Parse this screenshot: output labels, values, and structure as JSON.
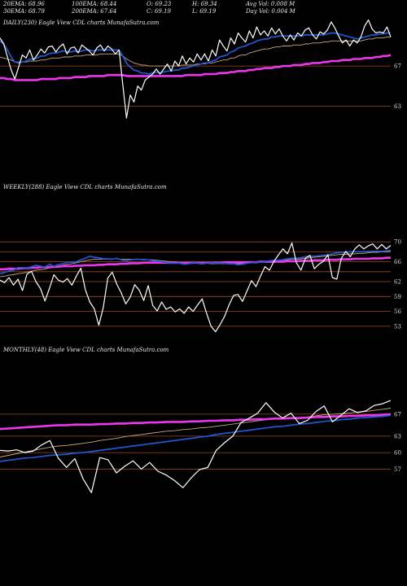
{
  "header": {
    "row1": [
      "20EMA: 68.96",
      "100EMA: 68.44",
      "O: 69.23",
      "H: 69.34",
      "Avg Vol: 0.008  M"
    ],
    "row2": [
      "30EMA: 68.79",
      "200EMA: 67.64",
      "C: 69.19",
      "L: 69.19",
      "Day Vol: 0.004  M"
    ]
  },
  "colors": {
    "background": "#000000",
    "price": "#ffffff",
    "ema_short": "#1e5ad8",
    "ema_long": "#ee36ee",
    "ema_other": "#c9a77a",
    "level_line": "#9c4a1e"
  },
  "chart_data": [
    {
      "type": "line",
      "title": "DAILY(230) Eagle  View  CDL  charts MunafaSutra.com",
      "ylim": [
        61,
        71.8
      ],
      "levels": [
        67,
        63
      ],
      "tick_labels": [
        "67",
        "63"
      ],
      "series": [
        {
          "role": "price",
          "values": [
            69.8,
            69.2,
            67.9,
            66.6,
            65.7,
            66.9,
            68.1,
            67.8,
            68.6,
            67.6,
            68.1,
            68.7,
            68.3,
            68.9,
            69.0,
            68.4,
            68.9,
            69.2,
            68.2,
            68.8,
            68.9,
            68.3,
            69.1,
            68.8,
            68.5,
            68.1,
            68.8,
            69.1,
            68.5,
            69.0,
            68.7,
            68.2,
            68.6,
            65.1,
            61.8,
            64.1,
            63.4,
            65.0,
            64.6,
            65.6,
            65.9,
            66.2,
            66.7,
            66.2,
            66.7,
            67.2,
            66.5,
            67.5,
            67.0,
            68.0,
            67.2,
            67.8,
            67.4,
            68.2,
            67.6,
            68.2,
            67.5,
            68.6,
            68.0,
            69.6,
            69.0,
            68.5,
            69.8,
            69.2,
            70.3,
            69.8,
            69.4,
            70.5,
            69.8,
            70.9,
            70.1,
            70.5,
            70.0,
            70.8,
            70.2,
            70.7,
            70.0,
            69.5,
            70.1,
            69.6,
            70.3,
            70.0,
            70.6,
            70.8,
            70.1,
            69.7,
            70.4,
            70.2,
            70.6,
            71.4,
            70.8,
            70.0,
            69.3,
            69.6,
            69.0,
            69.6,
            69.3,
            69.9,
            71.0,
            71.6,
            70.7,
            70.3,
            70.4,
            70.3,
            70.9,
            69.9
          ]
        },
        {
          "role": "ema_short",
          "values": [
            69.5,
            69.2,
            68.6,
            67.9,
            67.4,
            67.3,
            67.4,
            67.5,
            67.7,
            67.7,
            67.8,
            68.0,
            68.0,
            68.2,
            68.3,
            68.3,
            68.4,
            68.5,
            68.4,
            68.4,
            68.5,
            68.4,
            68.5,
            68.6,
            68.6,
            68.5,
            68.6,
            68.6,
            68.6,
            68.6,
            68.6,
            68.6,
            68.6,
            68.0,
            67.3,
            66.9,
            66.6,
            66.5,
            66.3,
            66.3,
            66.2,
            66.3,
            66.4,
            66.3,
            66.4,
            66.5,
            66.5,
            66.6,
            66.6,
            66.8,
            66.8,
            66.9,
            67.0,
            67.1,
            67.2,
            67.3,
            67.3,
            67.5,
            67.6,
            67.9,
            68.0,
            68.1,
            68.4,
            68.5,
            68.8,
            68.9,
            69.0,
            69.2,
            69.3,
            69.5,
            69.6,
            69.7,
            69.7,
            69.9,
            69.9,
            70.0,
            70.0,
            70.0,
            70.0,
            70.0,
            70.0,
            70.0,
            70.1,
            70.1,
            70.1,
            70.1,
            70.1,
            70.1,
            70.2,
            70.3,
            70.3,
            70.2,
            70.1,
            70.0,
            69.9,
            69.8,
            69.7,
            69.8,
            69.9,
            70.0,
            70.1,
            70.1,
            70.2,
            70.2,
            70.3,
            70.3
          ]
        },
        {
          "role": "ema_long",
          "values": [
            65.8,
            65.8,
            65.7,
            65.7,
            65.6,
            65.6,
            65.6,
            65.6,
            65.6,
            65.6,
            65.6,
            65.7,
            65.7,
            65.7,
            65.7,
            65.7,
            65.8,
            65.8,
            65.8,
            65.8,
            65.9,
            65.9,
            65.9,
            65.9,
            66.0,
            66.0,
            66.0,
            66.0,
            66.0,
            66.1,
            66.1,
            66.1,
            66.1,
            66.1,
            66.0,
            66.0,
            66.0,
            66.0,
            66.0,
            66.0,
            66.0,
            66.0,
            66.0,
            66.0,
            66.0,
            66.0,
            66.0,
            66.0,
            66.0,
            66.0,
            66.1,
            66.1,
            66.1,
            66.1,
            66.1,
            66.2,
            66.2,
            66.2,
            66.2,
            66.3,
            66.3,
            66.3,
            66.4,
            66.4,
            66.5,
            66.5,
            66.5,
            66.6,
            66.6,
            66.7,
            66.7,
            66.8,
            66.8,
            66.8,
            66.9,
            66.9,
            67.0,
            67.0,
            67.0,
            67.1,
            67.1,
            67.1,
            67.2,
            67.2,
            67.3,
            67.3,
            67.3,
            67.4,
            67.4,
            67.5,
            67.5,
            67.5,
            67.6,
            67.6,
            67.6,
            67.7,
            67.7,
            67.7,
            67.8,
            67.8,
            67.8,
            67.9,
            67.9,
            68.0,
            68.0,
            68.1
          ]
        },
        {
          "role": "ema_other",
          "values": [
            67.9,
            67.8,
            67.7,
            67.6,
            67.4,
            67.4,
            67.4,
            67.4,
            67.5,
            67.5,
            67.5,
            67.6,
            67.6,
            67.7,
            67.8,
            67.8,
            67.8,
            67.9,
            67.9,
            67.9,
            68.0,
            68.0,
            68.0,
            68.1,
            68.1,
            68.1,
            68.1,
            68.2,
            68.2,
            68.2,
            68.2,
            68.2,
            68.2,
            68.0,
            67.7,
            67.5,
            67.3,
            67.2,
            67.1,
            67.1,
            67.0,
            67.0,
            67.0,
            67.0,
            67.0,
            67.0,
            67.0,
            67.0,
            67.0,
            67.1,
            67.1,
            67.1,
            67.1,
            67.2,
            67.2,
            67.2,
            67.3,
            67.3,
            67.4,
            67.5,
            67.6,
            67.6,
            67.8,
            67.8,
            68.0,
            68.1,
            68.1,
            68.3,
            68.4,
            68.5,
            68.6,
            68.7,
            68.7,
            68.8,
            68.9,
            68.9,
            69.0,
            69.0,
            69.0,
            69.1,
            69.1,
            69.1,
            69.2,
            69.2,
            69.3,
            69.3,
            69.3,
            69.4,
            69.4,
            69.5,
            69.5,
            69.5,
            69.5,
            69.5,
            69.5,
            69.5,
            69.5,
            69.5,
            69.6,
            69.7,
            69.7,
            69.8,
            69.8,
            69.8,
            69.9,
            69.9
          ]
        }
      ]
    },
    {
      "type": "line",
      "title": "WEEKLY(288) Eagle  View  CDL  charts MunafaSutra.com",
      "ylim": [
        51.5,
        72.5
      ],
      "levels": [
        70,
        68,
        66,
        64,
        62,
        59,
        56,
        53
      ],
      "tick_labels": [
        "70",
        "66",
        "62",
        "59",
        "56",
        "53"
      ],
      "series": [
        {
          "role": "price",
          "values": [
            62.3,
            61.8,
            62.8,
            61.3,
            62.5,
            60.2,
            63.5,
            64.1,
            62.0,
            60.6,
            58.1,
            60.6,
            63.4,
            62.3,
            61.9,
            62.6,
            61.3,
            63.1,
            64.7,
            60.4,
            57.9,
            56.5,
            53.2,
            56.8,
            62.7,
            63.9,
            61.5,
            59.7,
            57.5,
            58.9,
            61.4,
            60.3,
            58.2,
            61.2,
            57.2,
            56.1,
            57.9,
            56.4,
            56.9,
            55.9,
            56.5,
            55.6,
            56.9,
            56.0,
            57.3,
            58.5,
            55.6,
            53.0,
            51.9,
            53.3,
            55.0,
            57.3,
            59.2,
            59.4,
            58.0,
            60.1,
            62.2,
            61.0,
            63.1,
            65.0,
            64.3,
            66.1,
            67.4,
            68.6,
            67.6,
            69.8,
            65.8,
            64.3,
            66.7,
            67.3,
            64.6,
            65.5,
            66.1,
            67.4,
            62.8,
            62.5,
            66.7,
            68.1,
            67.0,
            68.6,
            69.4,
            68.6,
            69.2,
            69.6,
            68.6,
            69.5,
            68.6,
            69.3
          ]
        },
        {
          "role": "ema_short",
          "values": [
            63.6,
            63.8,
            64.2,
            64.3,
            64.8,
            64.8,
            64.7,
            65.0,
            65.3,
            65.1,
            64.9,
            65.5,
            65.1,
            65.4,
            65.6,
            65.9,
            65.9,
            66.0,
            66.4,
            66.7,
            67.1,
            66.9,
            66.8,
            66.6,
            66.6,
            66.5,
            66.7,
            66.4,
            66.2,
            66.4,
            66.5,
            66.5,
            66.4,
            66.4,
            66.2,
            66.1,
            66.0,
            65.9,
            65.7,
            65.7,
            65.7,
            65.5,
            65.6,
            65.8,
            65.7,
            65.6,
            65.7,
            65.8,
            65.7,
            65.7,
            65.7,
            65.6,
            65.6,
            65.4,
            65.5,
            65.7,
            65.8,
            66.0,
            65.9,
            66.0,
            66.2,
            66.3,
            66.3,
            66.4,
            66.6,
            66.7,
            66.7,
            66.8,
            67.0,
            67.1,
            67.1,
            67.2,
            67.3,
            67.4,
            67.6,
            67.8,
            67.9,
            67.9,
            68.0,
            68.0,
            68.0,
            68.0,
            68.1,
            68.1,
            68.1,
            68.1,
            68.2,
            68.3
          ]
        },
        {
          "role": "ema_long",
          "values": [
            64.5,
            64.5,
            64.6,
            64.6,
            64.6,
            64.7,
            64.7,
            64.8,
            64.8,
            64.9,
            64.9,
            64.9,
            65.0,
            65.0,
            65.1,
            65.1,
            65.1,
            65.2,
            65.2,
            65.3,
            65.3,
            65.3,
            65.4,
            65.4,
            65.5,
            65.5,
            65.5,
            65.6,
            65.6,
            65.7,
            65.7,
            65.7,
            65.8,
            65.8,
            65.8,
            65.8,
            65.8,
            65.8,
            65.8,
            65.8,
            65.8,
            65.8,
            65.8,
            65.8,
            65.8,
            65.8,
            65.8,
            65.8,
            65.8,
            65.8,
            65.9,
            65.9,
            65.9,
            65.9,
            65.9,
            65.9,
            65.9,
            65.9,
            66.0,
            66.0,
            66.0,
            66.0,
            66.0,
            66.0,
            66.1,
            66.1,
            66.1,
            66.2,
            66.2,
            66.2,
            66.3,
            66.3,
            66.3,
            66.4,
            66.4,
            66.4,
            66.5,
            66.5,
            66.5,
            66.6,
            66.6,
            66.6,
            66.6,
            66.7,
            66.7,
            66.7,
            66.8,
            66.8
          ]
        },
        {
          "role": "ema_other",
          "values": [
            63.0,
            63.1,
            63.3,
            63.4,
            63.6,
            63.7,
            63.9,
            64.1,
            64.3,
            64.4,
            64.5,
            64.8,
            64.9,
            65.1,
            65.3,
            65.5,
            65.6,
            65.8,
            66.0,
            66.2,
            66.4,
            66.5,
            66.5,
            66.5,
            66.5,
            66.6,
            66.6,
            66.5,
            66.5,
            66.5,
            66.5,
            66.5,
            66.5,
            66.4,
            66.4,
            66.3,
            66.2,
            66.1,
            66.0,
            66.0,
            65.9,
            65.8,
            65.8,
            65.8,
            65.7,
            65.7,
            65.7,
            65.6,
            65.6,
            65.6,
            65.6,
            65.6,
            65.6,
            65.6,
            65.7,
            65.8,
            65.8,
            65.9,
            66.0,
            66.0,
            66.1,
            66.2,
            66.2,
            66.3,
            66.4,
            66.5,
            66.5,
            66.6,
            66.7,
            66.8,
            66.9,
            67.0,
            67.1,
            67.2,
            67.3,
            67.4,
            67.5,
            67.5,
            67.6,
            67.6,
            67.7,
            67.7,
            67.8,
            67.9,
            67.9,
            68.0,
            68.0,
            68.1
          ]
        }
      ]
    },
    {
      "type": "line",
      "title": "MONTHLY(48) Eagle  View  CDL  charts MunafaSutra.com",
      "ylim": [
        52,
        71
      ],
      "levels": [
        67,
        63,
        60,
        57
      ],
      "tick_labels": [
        "67",
        "63",
        "60",
        "57"
      ],
      "series": [
        {
          "role": "price",
          "values": [
            60.4,
            60.3,
            60.5,
            60.0,
            60.3,
            61.4,
            62.2,
            59.0,
            57.3,
            58.9,
            55.2,
            52.7,
            59.1,
            58.7,
            56.3,
            57.5,
            58.5,
            57.0,
            58.2,
            56.6,
            55.9,
            54.9,
            53.6,
            55.4,
            56.9,
            57.3,
            60.4,
            61.8,
            63.0,
            65.5,
            66.3,
            67.2,
            69.1,
            67.4,
            66.3,
            67.2,
            65.3,
            65.9,
            67.5,
            68.5,
            65.6,
            66.8,
            68.0,
            67.3,
            67.6,
            68.6,
            68.9,
            69.5
          ]
        },
        {
          "role": "ema_short",
          "values": [
            58.4,
            58.6,
            58.8,
            59.0,
            59.1,
            59.3,
            59.5,
            59.6,
            59.7,
            59.9,
            60.0,
            60.2,
            60.4,
            60.6,
            60.8,
            61.0,
            61.2,
            61.4,
            61.6,
            61.8,
            62.0,
            62.2,
            62.4,
            62.6,
            62.8,
            63.0,
            63.3,
            63.5,
            63.7,
            63.9,
            64.1,
            64.3,
            64.5,
            64.7,
            64.8,
            65.0,
            65.2,
            65.3,
            65.5,
            65.7,
            65.8,
            66.0,
            66.1,
            66.3,
            66.4,
            66.5,
            66.6,
            66.8
          ]
        },
        {
          "role": "ema_long",
          "values": [
            64.3,
            64.4,
            64.5,
            64.6,
            64.7,
            64.8,
            64.9,
            65.0,
            65.0,
            65.1,
            65.1,
            65.1,
            65.2,
            65.2,
            65.3,
            65.3,
            65.4,
            65.4,
            65.5,
            65.5,
            65.6,
            65.6,
            65.6,
            65.7,
            65.7,
            65.8,
            65.8,
            65.9,
            65.9,
            66.0,
            66.0,
            66.1,
            66.1,
            66.2,
            66.2,
            66.3,
            66.3,
            66.4,
            66.5,
            66.5,
            66.6,
            66.6,
            66.7,
            66.7,
            66.8,
            66.8,
            66.9,
            67.0
          ]
        },
        {
          "role": "ema_other",
          "values": [
            59.2,
            59.5,
            59.8,
            60.1,
            60.4,
            60.7,
            61.0,
            61.2,
            61.3,
            61.5,
            61.7,
            61.9,
            62.2,
            62.4,
            62.6,
            62.9,
            63.1,
            63.3,
            63.5,
            63.7,
            63.9,
            64.0,
            64.2,
            64.3,
            64.5,
            64.6,
            64.8,
            65.0,
            65.2,
            65.4,
            65.6,
            65.8,
            66.0,
            66.1,
            66.2,
            66.3,
            66.4,
            66.5,
            66.7,
            66.9,
            67.0,
            67.1,
            67.2,
            67.4,
            67.5,
            67.7,
            67.9,
            68.1
          ]
        }
      ]
    }
  ]
}
